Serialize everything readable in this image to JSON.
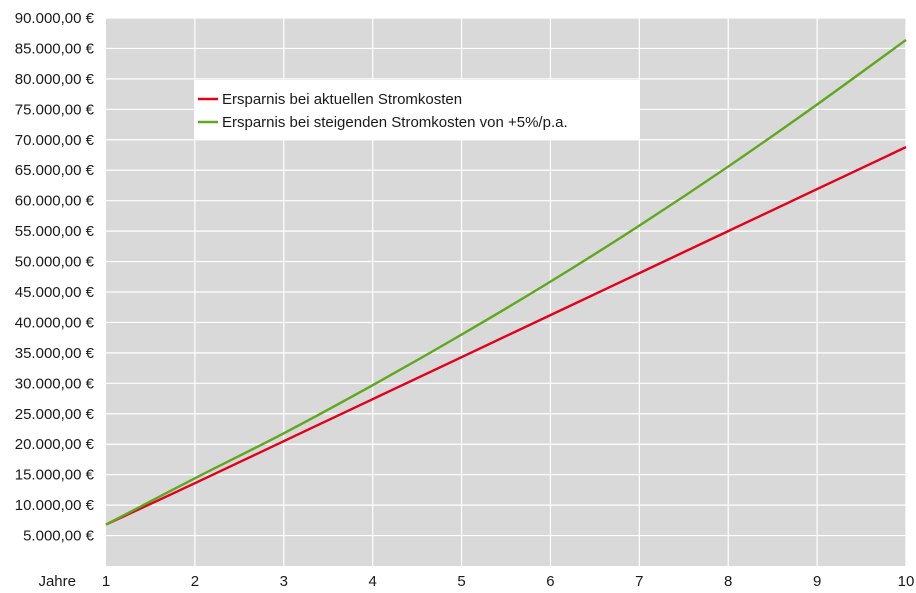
{
  "chart_data": {
    "type": "line",
    "xlabel": "Jahre",
    "ylabel": "",
    "title": "",
    "x": [
      1,
      2,
      3,
      4,
      5,
      6,
      7,
      8,
      9,
      10
    ],
    "x_tick_labels": [
      "1",
      "2",
      "3",
      "4",
      "5",
      "6",
      "7",
      "8",
      "9",
      "10"
    ],
    "ylim": [
      0,
      90000
    ],
    "xlim": [
      1,
      10
    ],
    "y_ticks": [
      5000,
      10000,
      15000,
      20000,
      25000,
      30000,
      35000,
      40000,
      45000,
      50000,
      55000,
      60000,
      65000,
      70000,
      75000,
      80000,
      85000,
      90000
    ],
    "y_tick_labels": [
      "5.000,00 €",
      "10.000,00 €",
      "15.000,00 €",
      "20.000,00 €",
      "25.000,00 €",
      "30.000,00 €",
      "35.000,00 €",
      "40.000,00 €",
      "45.000,00 €",
      "50.000,00 €",
      "55.000,00 €",
      "60.000,00 €",
      "65.000,00 €",
      "70.000,00 €",
      "75.000,00 €",
      "80.000,00 €",
      "85.000,00 €",
      "90.000,00 €"
    ],
    "grid": true,
    "legend_position": "top-left",
    "series": [
      {
        "name": "Ersparnis bei aktuellen Stromkosten",
        "color": "#e2001a",
        "values": [
          6800,
          13600,
          20500,
          27400,
          34300,
          41200,
          48100,
          55000,
          61900,
          68800
        ]
      },
      {
        "name": "Ersparnis bei steigenden Stromkosten von +5%/p.a.",
        "color": "#5fa81e",
        "values": [
          6800,
          14400,
          21800,
          29700,
          38000,
          46700,
          55900,
          65600,
          75800,
          86400
        ]
      }
    ]
  },
  "colors": {
    "plot_background": "#d9d9d9",
    "grid": "#ffffff"
  }
}
